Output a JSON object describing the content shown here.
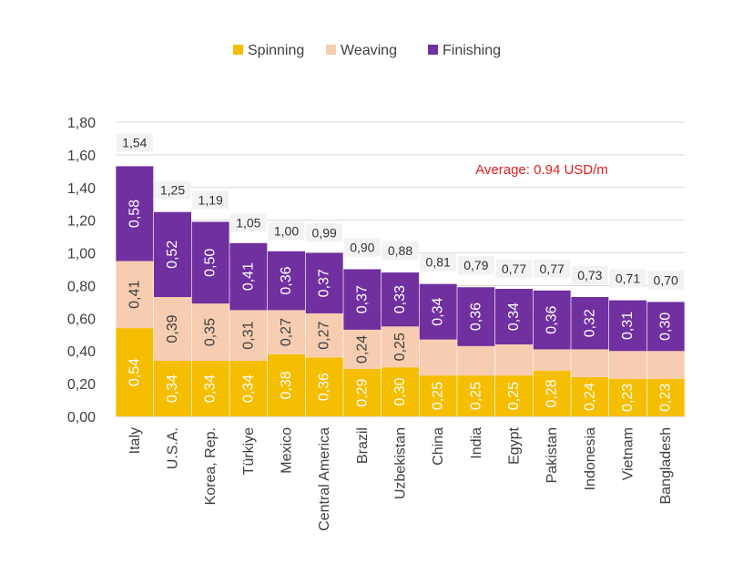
{
  "chart_data": {
    "type": "bar",
    "stacked": true,
    "categories": [
      "Italy",
      "U.S.A.",
      "Korea, Rep.",
      "Türkiye",
      "Mexico",
      "Central America",
      "Brazil",
      "Uzbekistan",
      "China",
      "India",
      "Egypt",
      "Pakistan",
      "Indonesia",
      "Vietnam",
      "Bangladesh"
    ],
    "series": [
      {
        "name": "Spinning",
        "color": "#F5BE00",
        "values": [
          0.54,
          0.34,
          0.34,
          0.34,
          0.38,
          0.36,
          0.29,
          0.3,
          0.25,
          0.25,
          0.25,
          0.28,
          0.24,
          0.23,
          0.23
        ],
        "labels": [
          "0,54",
          "0,34",
          "0,34",
          "0,34",
          "0,38",
          "0,36",
          "0,29",
          "0,30",
          "0,25",
          "0,25",
          "0,25",
          "0,28",
          "0,24",
          "0,23",
          "0,23"
        ]
      },
      {
        "name": "Weaving",
        "color": "#F6CDB0",
        "values": [
          0.41,
          0.39,
          0.35,
          0.31,
          0.27,
          0.27,
          0.24,
          0.25,
          0.22,
          0.18,
          0.19,
          0.13,
          0.17,
          0.17,
          0.17
        ],
        "labels": [
          "0,41",
          "0,39",
          "0,35",
          "0,31",
          "0,27",
          "0,27",
          "0,24",
          "0,25",
          null,
          null,
          null,
          null,
          null,
          null,
          null
        ]
      },
      {
        "name": "Finishing",
        "color": "#7030A0",
        "values": [
          0.58,
          0.52,
          0.5,
          0.41,
          0.36,
          0.37,
          0.37,
          0.33,
          0.34,
          0.36,
          0.34,
          0.36,
          0.32,
          0.31,
          0.3
        ],
        "labels": [
          "0,58",
          "0,52",
          "0,50",
          "0,41",
          "0,36",
          "0,37",
          "0,37",
          "0,33",
          "0,34",
          "0,36",
          "0,34",
          "0,36",
          "0,32",
          "0,31",
          "0,30"
        ]
      }
    ],
    "totals": [
      1.54,
      1.25,
      1.19,
      1.05,
      1.0,
      0.99,
      0.9,
      0.88,
      0.81,
      0.79,
      0.77,
      0.77,
      0.73,
      0.71,
      0.7
    ],
    "total_labels": [
      "1,54",
      "1,25",
      "1,19",
      "1,05",
      "1,00",
      "0,99",
      "0,90",
      "0,88",
      "0,81",
      "0,79",
      "0,77",
      "0,77",
      "0,73",
      "0,71",
      "0,70"
    ],
    "ylim": [
      0,
      1.8
    ],
    "yticks": [
      0,
      0.2,
      0.4,
      0.6,
      0.8,
      1.0,
      1.2,
      1.4,
      1.6,
      1.8
    ],
    "ytick_labels": [
      "0,00",
      "0,20",
      "0,40",
      "0,60",
      "0,80",
      "1,00",
      "1,20",
      "1,40",
      "1,60",
      "1,80"
    ],
    "grid": true,
    "legend_position": "top-center",
    "annotation": {
      "text": "Average: 0.94 USD/m",
      "color": "#E02020"
    }
  }
}
